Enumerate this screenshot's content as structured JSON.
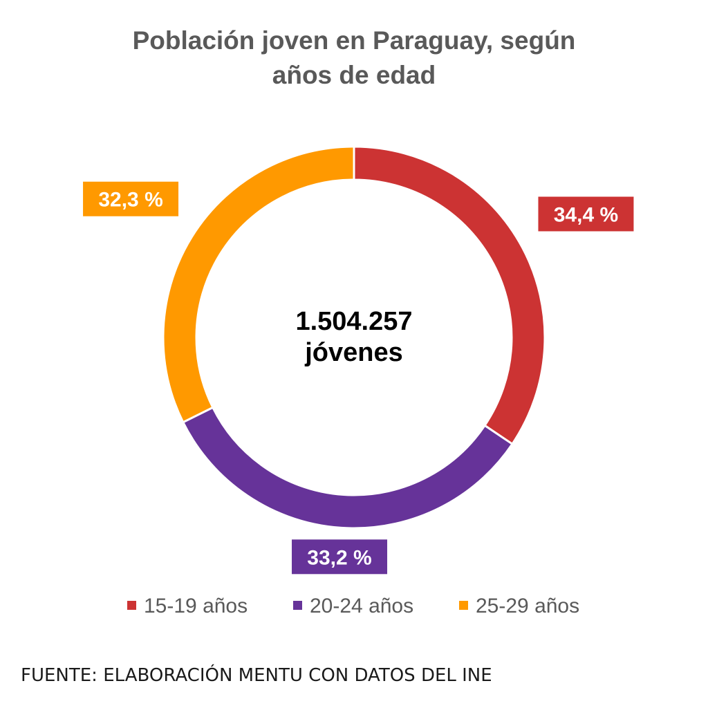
{
  "chart_data": {
    "type": "pie",
    "title_lines": [
      "Población joven en Paraguay, según",
      "años de edad"
    ],
    "center_label_lines": [
      "1.504.257",
      "jóvenes"
    ],
    "categories": [
      "15-19 años",
      "20-24 años",
      "25-29 años"
    ],
    "values": [
      34.4,
      33.2,
      32.3
    ],
    "data_labels": [
      "34,4 %",
      "33,2 %",
      "32,3 %"
    ],
    "colors": [
      "#CC3333",
      "#663399",
      "#FF9900"
    ],
    "legend_position": "bottom",
    "donut": true
  },
  "source": "FUENTE: ELABORACIÓN MENTU CON DATOS DEL INE"
}
